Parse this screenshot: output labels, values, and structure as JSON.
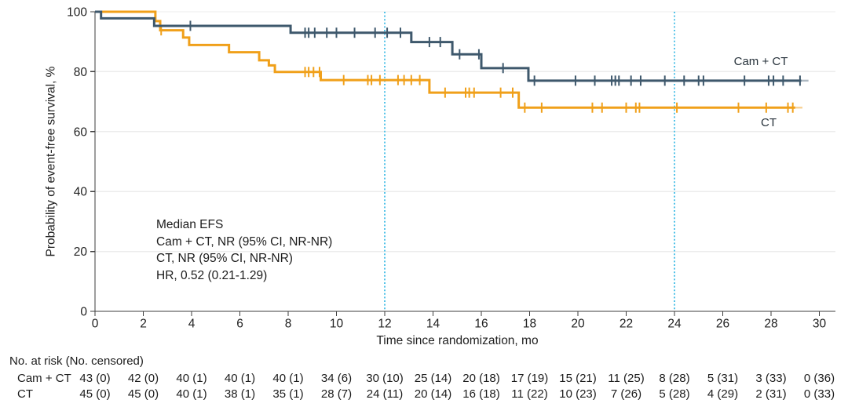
{
  "chart_data": {
    "type": "line",
    "subtype": "kaplan-meier-step",
    "xlabel": "Time since randomization, mo",
    "ylabel": "Probability of event-free survival, %",
    "xlim": [
      0,
      30
    ],
    "ylim": [
      0,
      100
    ],
    "xticks": [
      0,
      2,
      4,
      6,
      8,
      10,
      12,
      14,
      16,
      18,
      20,
      22,
      24,
      26,
      28,
      30
    ],
    "yticks": [
      0,
      20,
      40,
      60,
      80,
      100
    ],
    "grid": "horizontal-light",
    "reference_lines": {
      "x_months": [
        12,
        24
      ],
      "style": "dotted",
      "color": "#54C3E8"
    },
    "annotation": [
      "Median EFS",
      "Cam + CT, NR (95% CI, NR-NR)",
      "CT, NR (95% CI, NR-NR)",
      "HR, 0.52 (0.21-1.29)"
    ],
    "series": [
      {
        "name": "Cam + CT",
        "color": "#3E586C",
        "tail_color": "#AEB9C2",
        "steps": [
          [
            0,
            100
          ],
          [
            0.25,
            97.8
          ],
          [
            2.45,
            95.3
          ],
          [
            8.1,
            93.0
          ],
          [
            13.1,
            89.9
          ],
          [
            14.8,
            85.8
          ],
          [
            16.0,
            81.2
          ],
          [
            17.95,
            77.0
          ]
        ],
        "solid_end": 29.25,
        "tail_end": 29.55,
        "censors": [
          [
            3.95,
            95.3
          ],
          [
            8.7,
            93.0
          ],
          [
            8.85,
            93.0
          ],
          [
            9.1,
            93.0
          ],
          [
            9.6,
            93.0
          ],
          [
            10.0,
            93.0
          ],
          [
            10.75,
            93.0
          ],
          [
            11.6,
            93.0
          ],
          [
            12.1,
            93.0
          ],
          [
            12.65,
            93.0
          ],
          [
            13.85,
            89.9
          ],
          [
            14.3,
            89.9
          ],
          [
            15.1,
            85.8
          ],
          [
            15.9,
            85.8
          ],
          [
            16.9,
            81.2
          ],
          [
            18.2,
            77.0
          ],
          [
            19.9,
            77.0
          ],
          [
            20.7,
            77.0
          ],
          [
            21.4,
            77.0
          ],
          [
            21.55,
            77.0
          ],
          [
            21.7,
            77.0
          ],
          [
            22.2,
            77.0
          ],
          [
            22.6,
            77.0
          ],
          [
            23.6,
            77.0
          ],
          [
            24.4,
            77.0
          ],
          [
            25.0,
            77.0
          ],
          [
            25.2,
            77.0
          ],
          [
            26.9,
            77.0
          ],
          [
            27.9,
            77.0
          ],
          [
            28.1,
            77.0
          ],
          [
            28.5,
            77.0
          ],
          [
            29.2,
            77.0
          ]
        ]
      },
      {
        "name": "CT",
        "color": "#F0A01A",
        "tail_color": "#F8D295",
        "steps": [
          [
            0,
            100
          ],
          [
            2.5,
            96.9
          ],
          [
            2.7,
            93.8
          ],
          [
            3.65,
            91.4
          ],
          [
            3.9,
            88.9
          ],
          [
            5.55,
            86.5
          ],
          [
            6.8,
            83.8
          ],
          [
            7.2,
            82.1
          ],
          [
            7.45,
            79.9
          ],
          [
            9.35,
            77.2
          ],
          [
            13.85,
            73.0
          ],
          [
            17.55,
            68.0
          ]
        ],
        "solid_end": 29.0,
        "tail_end": 29.3,
        "censors": [
          [
            2.74,
            93.8
          ],
          [
            8.7,
            79.9
          ],
          [
            8.85,
            79.9
          ],
          [
            9.05,
            79.9
          ],
          [
            9.3,
            79.9
          ],
          [
            10.3,
            77.2
          ],
          [
            11.3,
            77.2
          ],
          [
            11.45,
            77.2
          ],
          [
            11.8,
            77.2
          ],
          [
            12.55,
            77.2
          ],
          [
            12.8,
            77.2
          ],
          [
            13.1,
            77.2
          ],
          [
            13.45,
            77.2
          ],
          [
            14.5,
            73.0
          ],
          [
            15.35,
            73.0
          ],
          [
            15.5,
            73.0
          ],
          [
            15.7,
            73.0
          ],
          [
            16.8,
            73.0
          ],
          [
            17.3,
            73.0
          ],
          [
            17.8,
            68.0
          ],
          [
            18.5,
            68.0
          ],
          [
            20.6,
            68.0
          ],
          [
            21.0,
            68.0
          ],
          [
            22.0,
            68.0
          ],
          [
            22.4,
            68.0
          ],
          [
            22.55,
            68.0
          ],
          [
            24.1,
            68.0
          ],
          [
            26.65,
            68.0
          ],
          [
            27.8,
            68.0
          ],
          [
            28.7,
            68.0
          ],
          [
            28.9,
            68.0
          ]
        ]
      }
    ],
    "risk_table": {
      "header": "No. at risk (No. censored)",
      "time_points": [
        0,
        2,
        4,
        6,
        8,
        10,
        12,
        14,
        16,
        18,
        20,
        22,
        24,
        26,
        28,
        30
      ],
      "rows": [
        {
          "label": "Cam + CT",
          "values": [
            "43 (0)",
            "42 (0)",
            "40 (1)",
            "40 (1)",
            "40 (1)",
            "34 (6)",
            "30 (10)",
            "25 (14)",
            "20 (18)",
            "17 (19)",
            "15 (21)",
            "11 (25)",
            "8 (28)",
            "5 (31)",
            "3 (33)",
            "0 (36)"
          ]
        },
        {
          "label": "CT",
          "values": [
            "45 (0)",
            "45 (0)",
            "40 (1)",
            "38 (1)",
            "35 (1)",
            "28 (7)",
            "24 (11)",
            "20 (14)",
            "16 (18)",
            "11 (22)",
            "10 (23)",
            "7 (26)",
            "5 (28)",
            "4 (29)",
            "2 (31)",
            "0 (33)"
          ]
        }
      ]
    },
    "colors": {
      "axis": "#3D3D3D",
      "gridline": "#ECECEC",
      "text": "#212121"
    }
  }
}
